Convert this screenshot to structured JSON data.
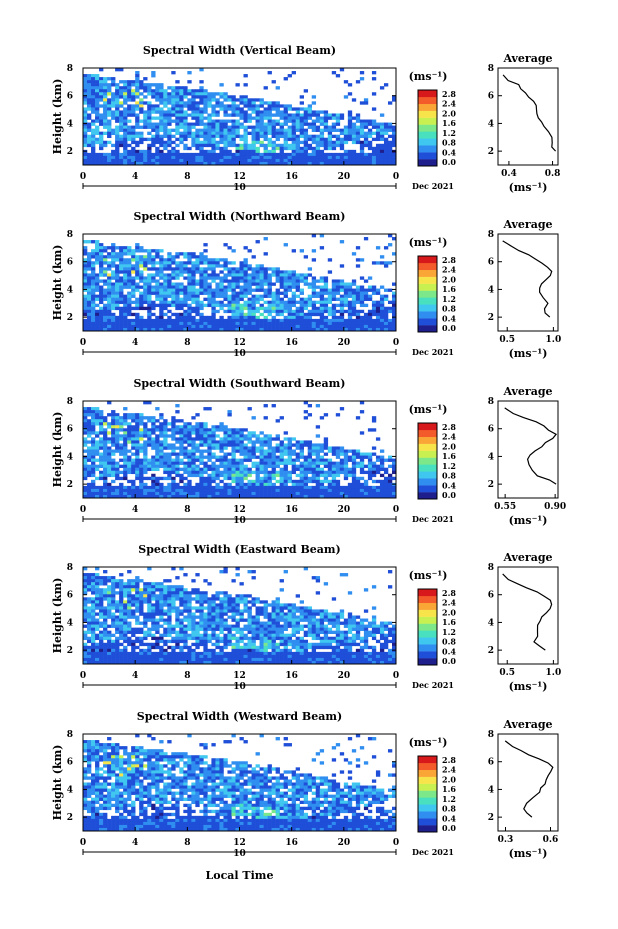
{
  "colors": {
    "colormap": [
      "#ffffff",
      "#1e1e8c",
      "#1f4fd8",
      "#2f8ef0",
      "#3fc7f0",
      "#49e0c0",
      "#7ce88a",
      "#c8f050",
      "#f7e44a",
      "#f9a636",
      "#f45b2a",
      "#d7191c"
    ]
  },
  "x_axis": {
    "ticks": [
      "0",
      "4",
      "8",
      "12",
      "16",
      "20",
      "0"
    ],
    "day_label": "10",
    "date_label": "Dec 2021",
    "xlabel": "Local Time"
  },
  "colorbar": {
    "unit": "(ms⁻¹)",
    "ticks": [
      "2.8",
      "2.4",
      "2.0",
      "1.6",
      "1.2",
      "0.8",
      "0.4",
      "0.0"
    ]
  },
  "avg_panel": {
    "title": "Average",
    "ylabel_unit": "(ms⁻¹)"
  },
  "ylabel": "Height (km)",
  "panels": [
    {
      "title": "Spectral Width (Vertical Beam)",
      "y_ticks": [
        "8",
        "6",
        "4",
        "2"
      ],
      "avg_x_ticks": [
        "0.4",
        "0.8"
      ]
    },
    {
      "title": "Spectral Width (Northward Beam)",
      "y_ticks": [
        "8",
        "6",
        "4",
        "2"
      ],
      "avg_x_ticks": [
        "0.5",
        "1.0"
      ]
    },
    {
      "title": "Spectral Width (Southward Beam)",
      "y_ticks": [
        "8",
        "6",
        "4",
        "2"
      ],
      "avg_x_ticks": [
        "0.55",
        "0.90"
      ]
    },
    {
      "title": "Spectral Width (Eastward Beam)",
      "y_ticks": [
        "8",
        "6",
        "4",
        "2"
      ],
      "avg_x_ticks": [
        "0.5",
        "1.0"
      ]
    },
    {
      "title": "Spectral Width (Westward Beam)",
      "y_ticks": [
        "8",
        "6",
        "4",
        "2"
      ],
      "avg_x_ticks": [
        "0.3",
        "0.6"
      ]
    }
  ],
  "chart_data": [
    {
      "type": "heatmap",
      "title": "Spectral Width (Vertical Beam)",
      "xlabel": "Local Time",
      "ylabel": "Height (km)",
      "xlim": [
        0,
        24
      ],
      "ylim": [
        1,
        8
      ],
      "colorbar_range": [
        0.0,
        2.8
      ],
      "colorbar_unit": "ms⁻¹",
      "date": "Dec 2021",
      "day": "10",
      "grid": false
    },
    {
      "type": "heatmap",
      "title": "Spectral Width (Northward Beam)",
      "xlabel": "Local Time",
      "ylabel": "Height (km)",
      "xlim": [
        0,
        24
      ],
      "ylim": [
        1,
        8
      ],
      "colorbar_range": [
        0.0,
        2.8
      ],
      "colorbar_unit": "ms⁻¹",
      "date": "Dec 2021",
      "day": "10",
      "grid": false
    },
    {
      "type": "heatmap",
      "title": "Spectral Width (Southward Beam)",
      "xlabel": "Local Time",
      "ylabel": "Height (km)",
      "xlim": [
        0,
        24
      ],
      "ylim": [
        1,
        8
      ],
      "colorbar_range": [
        0.0,
        2.8
      ],
      "colorbar_unit": "ms⁻¹",
      "date": "Dec 2021",
      "day": "10",
      "grid": false
    },
    {
      "type": "heatmap",
      "title": "Spectral Width (Eastward Beam)",
      "xlabel": "Local Time",
      "ylabel": "Height (km)",
      "xlim": [
        0,
        24
      ],
      "ylim": [
        1,
        8
      ],
      "colorbar_range": [
        0.0,
        2.8
      ],
      "colorbar_unit": "ms⁻¹",
      "date": "Dec 2021",
      "day": "10",
      "grid": false
    },
    {
      "type": "heatmap",
      "title": "Spectral Width (Westward Beam)",
      "xlabel": "Local Time",
      "ylabel": "Height (km)",
      "xlim": [
        0,
        24
      ],
      "ylim": [
        1,
        8
      ],
      "colorbar_range": [
        0.0,
        2.8
      ],
      "colorbar_unit": "ms⁻¹",
      "date": "Dec 2021",
      "day": "10",
      "grid": false
    },
    {
      "type": "line",
      "title": "Average",
      "beam": "Vertical",
      "xlabel": "(ms⁻¹)",
      "xlim": [
        0.3,
        0.85
      ],
      "ylim": [
        1,
        8
      ],
      "x": [
        0.82,
        0.8,
        0.79,
        0.8,
        0.76,
        0.72,
        0.7,
        0.68,
        0.66,
        0.66,
        0.64,
        0.62,
        0.58,
        0.55,
        0.5,
        0.48,
        0.4,
        0.35
      ],
      "y": [
        2.0,
        2.3,
        2.6,
        3.0,
        3.4,
        3.8,
        4.1,
        4.4,
        4.7,
        5.0,
        5.3,
        5.6,
        5.9,
        6.2,
        6.5,
        6.8,
        7.1,
        7.5
      ]
    },
    {
      "type": "line",
      "title": "Average",
      "beam": "Northward",
      "xlabel": "(ms⁻¹)",
      "xlim": [
        0.4,
        1.05
      ],
      "ylim": [
        1,
        8
      ],
      "x": [
        0.95,
        0.92,
        0.9,
        0.93,
        0.88,
        0.86,
        0.84,
        0.88,
        0.92,
        0.96,
        0.98,
        0.95,
        0.88,
        0.8,
        0.72,
        0.62,
        0.55,
        0.45
      ],
      "y": [
        2.0,
        2.3,
        2.6,
        3.0,
        3.4,
        3.8,
        4.1,
        4.4,
        4.7,
        5.0,
        5.3,
        5.6,
        5.9,
        6.2,
        6.5,
        6.8,
        7.1,
        7.5
      ]
    },
    {
      "type": "line",
      "title": "Average",
      "beam": "Southward",
      "xlabel": "(ms⁻¹)",
      "xlim": [
        0.5,
        0.92
      ],
      "ylim": [
        1,
        8
      ],
      "x": [
        0.9,
        0.86,
        0.78,
        0.74,
        0.72,
        0.71,
        0.73,
        0.76,
        0.8,
        0.84,
        0.88,
        0.9,
        0.86,
        0.82,
        0.76,
        0.68,
        0.6,
        0.54
      ],
      "y": [
        2.0,
        2.3,
        2.6,
        3.0,
        3.4,
        3.8,
        4.1,
        4.4,
        4.7,
        5.0,
        5.3,
        5.6,
        5.9,
        6.2,
        6.5,
        6.8,
        7.1,
        7.5
      ]
    },
    {
      "type": "line",
      "title": "Average",
      "beam": "Eastward",
      "xlabel": "(ms⁻¹)",
      "xlim": [
        0.4,
        1.05
      ],
      "ylim": [
        1,
        8
      ],
      "x": [
        0.92,
        0.85,
        0.8,
        0.84,
        0.82,
        0.84,
        0.86,
        0.88,
        0.92,
        0.96,
        0.98,
        0.96,
        0.9,
        0.82,
        0.72,
        0.62,
        0.52,
        0.45
      ],
      "y": [
        2.0,
        2.3,
        2.6,
        3.0,
        3.4,
        3.8,
        4.1,
        4.4,
        4.7,
        5.0,
        5.3,
        5.6,
        5.9,
        6.2,
        6.5,
        6.8,
        7.1,
        7.5
      ]
    },
    {
      "type": "line",
      "title": "Average",
      "beam": "Westward",
      "xlabel": "(ms⁻¹)",
      "xlim": [
        0.25,
        0.65
      ],
      "ylim": [
        1,
        8
      ],
      "x": [
        0.48,
        0.44,
        0.42,
        0.44,
        0.48,
        0.52,
        0.54,
        0.56,
        0.57,
        0.58,
        0.6,
        0.62,
        0.58,
        0.52,
        0.46,
        0.4,
        0.34,
        0.3
      ],
      "y": [
        2.0,
        2.3,
        2.6,
        3.0,
        3.4,
        3.8,
        4.1,
        4.4,
        4.7,
        5.0,
        5.3,
        5.6,
        5.9,
        6.2,
        6.5,
        6.8,
        7.1,
        7.5
      ]
    }
  ]
}
